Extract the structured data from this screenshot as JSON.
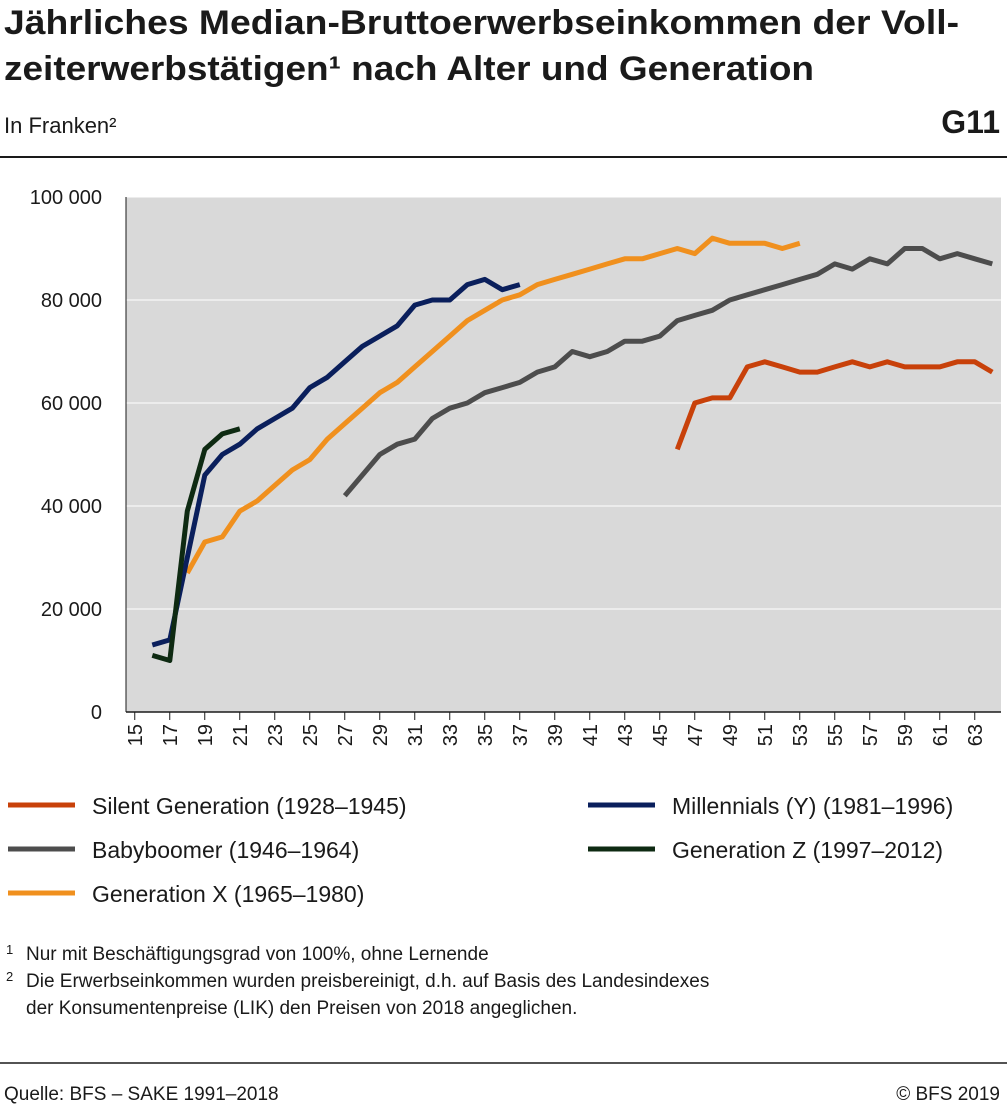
{
  "chart_data": {
    "type": "line",
    "title_lines": [
      "Jährliches Median-Bruttoerwerbseinkommen der Voll-",
      "zeiterwerbstätigen¹ nach Alter und Generation"
    ],
    "subtitle": "In Franken²",
    "graphic_id": "G11",
    "xlim": [
      14.5,
      64.5
    ],
    "xticks": [
      15,
      17,
      19,
      21,
      23,
      25,
      27,
      29,
      31,
      33,
      35,
      37,
      39,
      41,
      43,
      45,
      47,
      49,
      51,
      53,
      55,
      57,
      59,
      61,
      63
    ],
    "ylim": [
      0,
      100000
    ],
    "yticks": [
      0,
      {
        "value": 20000,
        "label": "20 000"
      },
      {
        "value": 40000,
        "label": "40 000"
      },
      {
        "value": 60000,
        "label": "60 000"
      },
      {
        "value": 80000,
        "label": "80 000"
      },
      {
        "value": 100000,
        "label": "100 000"
      }
    ],
    "grid": true,
    "series": [
      {
        "name": "Silent Generation (1928–1945)",
        "color": "#c8410a",
        "x": [
          46,
          47,
          48,
          49,
          50,
          51,
          52,
          53,
          54,
          55,
          56,
          57,
          58,
          59,
          60,
          61,
          62,
          63,
          64
        ],
        "values": [
          51000,
          60000,
          61000,
          61000,
          67000,
          68000,
          67000,
          66000,
          66000,
          67000,
          68000,
          67000,
          68000,
          67000,
          67000,
          67000,
          68000,
          68000,
          66000
        ]
      },
      {
        "name": "Babyboomer (1946–1964)",
        "color": "#4d4d4d",
        "x": [
          27,
          28,
          29,
          30,
          31,
          32,
          33,
          34,
          35,
          36,
          37,
          38,
          39,
          40,
          41,
          42,
          43,
          44,
          45,
          46,
          47,
          48,
          49,
          50,
          51,
          52,
          53,
          54,
          55,
          56,
          57,
          58,
          59,
          60,
          61,
          62,
          63,
          64
        ],
        "values": [
          42000,
          46000,
          50000,
          52000,
          53000,
          57000,
          59000,
          60000,
          62000,
          63000,
          64000,
          66000,
          67000,
          70000,
          69000,
          70000,
          72000,
          72000,
          73000,
          76000,
          77000,
          78000,
          80000,
          81000,
          82000,
          83000,
          84000,
          85000,
          87000,
          86000,
          88000,
          87000,
          90000,
          90000,
          88000,
          89000,
          88000,
          87000
        ]
      },
      {
        "name": "Generation X (1965–1980)",
        "color": "#f0901e",
        "x": [
          18,
          19,
          20,
          21,
          22,
          23,
          24,
          25,
          26,
          27,
          28,
          29,
          30,
          31,
          32,
          33,
          34,
          35,
          36,
          37,
          38,
          39,
          40,
          41,
          42,
          43,
          44,
          45,
          46,
          47,
          48,
          49,
          50,
          51,
          52,
          53
        ],
        "values": [
          27000,
          33000,
          34000,
          39000,
          41000,
          44000,
          47000,
          49000,
          53000,
          56000,
          59000,
          62000,
          64000,
          67000,
          70000,
          73000,
          76000,
          78000,
          80000,
          81000,
          83000,
          84000,
          85000,
          86000,
          87000,
          88000,
          88000,
          89000,
          90000,
          89000,
          92000,
          91000,
          91000,
          91000,
          90000,
          91000
        ]
      },
      {
        "name": "Millennials (Y) (1981–1996)",
        "color": "#0a1f5c",
        "x": [
          16,
          17,
          18,
          19,
          20,
          21,
          22,
          23,
          24,
          25,
          26,
          27,
          28,
          29,
          30,
          31,
          32,
          33,
          34,
          35,
          36,
          37
        ],
        "values": [
          13000,
          14000,
          30000,
          46000,
          50000,
          52000,
          55000,
          57000,
          59000,
          63000,
          65000,
          68000,
          71000,
          73000,
          75000,
          79000,
          80000,
          80000,
          83000,
          84000,
          82000,
          83000
        ]
      },
      {
        "name": "Generation Z (1997–2012)",
        "color": "#0e2a12",
        "x": [
          16,
          17,
          18,
          19,
          20,
          21
        ],
        "values": [
          11000,
          10000,
          39000,
          51000,
          54000,
          55000
        ]
      }
    ],
    "footnotes": [
      {
        "mark": "1",
        "lines": [
          "Nur mit Beschäftigungsgrad von 100%, ohne Lernende"
        ]
      },
      {
        "mark": "2",
        "lines": [
          "Die Erwerbseinkommen wurden preisbereinigt, d.h. auf Basis des Landesindexes",
          "der Konsumentenpreise (LIK) den Preisen von 2018 angeglichen."
        ]
      }
    ],
    "source": "Quelle: BFS – SAKE 1991–2018",
    "copyright": "© BFS 2019"
  }
}
